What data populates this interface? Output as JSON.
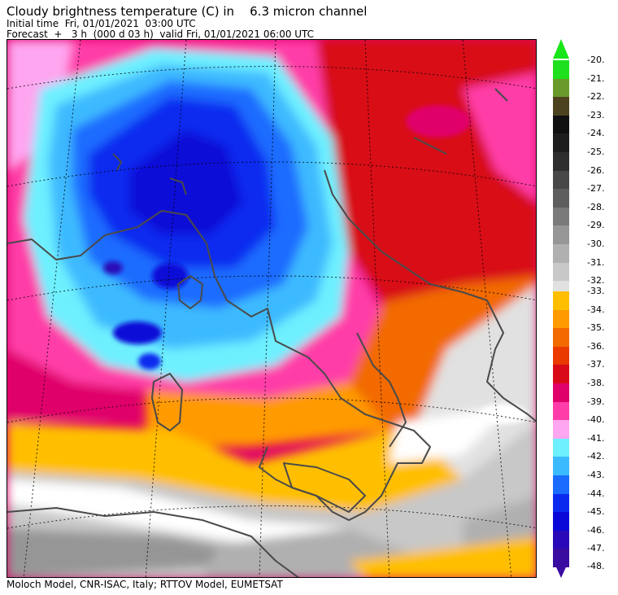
{
  "header": {
    "title": "Cloudy brightness temperature (C) in    6.3 micron channel",
    "initial_time": "Initial time  Fri, 01/01/2021  03:00 UTC",
    "forecast": "Forecast  +   3 h  (000 d 03 h)  valid Fri, 01/01/2021 06:00 UTC"
  },
  "footer": {
    "credits": "Moloch Model, CNR-ISAC, Italy; RTTOV Model, EUMETSAT"
  },
  "colorbar": {
    "upper_block": [
      {
        "label": "-20.",
        "color": "#1fe01f"
      },
      {
        "label": "-21.",
        "color": "#6a9a2a"
      },
      {
        "label": "-22.",
        "color": "#4d4220"
      },
      {
        "label": "-23.",
        "color": "#101010"
      },
      {
        "label": "-24.",
        "color": "#1d1d1d"
      },
      {
        "label": "-25.",
        "color": "#2e2e2e"
      },
      {
        "label": "-26.",
        "color": "#484848"
      },
      {
        "label": "-27.",
        "color": "#5e5e5e"
      },
      {
        "label": "-28.",
        "color": "#7a7a7a"
      },
      {
        "label": "-29.",
        "color": "#969696"
      },
      {
        "label": "-30.",
        "color": "#b0b0b0"
      },
      {
        "label": "-31.",
        "color": "#c8c8c8"
      },
      {
        "label": "-32.",
        "color": "#e1e1e1"
      }
    ],
    "lower_block": [
      {
        "label": "-33.",
        "color": "#ffbf00"
      },
      {
        "label": "-34.",
        "color": "#ff9a00"
      },
      {
        "label": "-35.",
        "color": "#f26a00"
      },
      {
        "label": "-36.",
        "color": "#ea3a00"
      },
      {
        "label": "-37.",
        "color": "#d80a18"
      },
      {
        "label": "-38.",
        "color": "#e0006a"
      },
      {
        "label": "-39.",
        "color": "#ff3ca8"
      },
      {
        "label": "-40.",
        "color": "#ffa6f0"
      },
      {
        "label": "-41.",
        "color": "#6ef0ff"
      },
      {
        "label": "-42.",
        "color": "#3cbaff"
      },
      {
        "label": "-43.",
        "color": "#1a6cff"
      },
      {
        "label": "-44.",
        "color": "#0b2aef"
      },
      {
        "label": "-45.",
        "color": "#0a08d8"
      },
      {
        "label": "-46.",
        "color": "#2a0ab8"
      },
      {
        "label": "-47.",
        "color": "#3a0ca0"
      }
    ],
    "bottom_label": "-48.",
    "top_arrow_color": "#19e619",
    "bottom_arrow_color": "#3a0ca0"
  }
}
